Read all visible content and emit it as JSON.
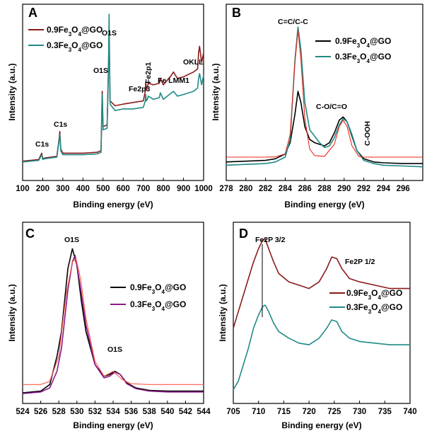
{
  "chart_data": [
    {
      "type": "line",
      "panel_label": "A",
      "xlabel": "Binding energy (eV)",
      "ylabel": "Intensity (a.u.)",
      "xlim": [
        100,
        1000
      ],
      "ylim": [
        0,
        100
      ],
      "xticks": [
        "100",
        "200",
        "300",
        "400",
        "500",
        "600",
        "700",
        "800",
        "900",
        "1000"
      ],
      "legend_position": "top-left",
      "annotations": [
        "C1s",
        "C1s",
        "O1S",
        "O1S",
        "Fe2p3",
        "Fe2p1",
        "Fe LMM1",
        "OKLL"
      ],
      "series": [
        {
          "name": "0.9Fe3O4@GO",
          "name_plain": "0.9Fe",
          "name_sub": "3",
          "name_mid": "O",
          "name_sub2": "4",
          "name_end": "@GO",
          "color": "#8b1a1a",
          "x": [
            100,
            180,
            195,
            200,
            210,
            270,
            282,
            285,
            290,
            300,
            400,
            470,
            490,
            496,
            500,
            520,
            527,
            530,
            535,
            560,
            600,
            650,
            700,
            710,
            712,
            715,
            720,
            725,
            750,
            780,
            785,
            800,
            840,
            850,
            870,
            900,
            950,
            970,
            975,
            980,
            990,
            1000
          ],
          "y": [
            8.5,
            9.5,
            13.5,
            10,
            10.5,
            11.5,
            23,
            27,
            16,
            13.5,
            13.5,
            14,
            15,
            52,
            30,
            31,
            68,
            90,
            46,
            43,
            44,
            45,
            46,
            52,
            58,
            53,
            55,
            57,
            56,
            57,
            60,
            56,
            62,
            64,
            60,
            61,
            64,
            66,
            76,
            80,
            70,
            76
          ]
        },
        {
          "name": "0.3Fe3O4@GO",
          "name_plain": "0.3Fe",
          "name_sub": "3",
          "name_mid": "O",
          "name_sub2": "4",
          "name_end": "@GO",
          "color": "#1f8a85",
          "x": [
            100,
            180,
            195,
            200,
            210,
            270,
            282,
            285,
            290,
            300,
            400,
            470,
            490,
            496,
            500,
            520,
            527,
            530,
            535,
            560,
            600,
            650,
            700,
            710,
            712,
            715,
            720,
            725,
            750,
            780,
            785,
            800,
            840,
            850,
            870,
            900,
            950,
            970,
            975,
            980,
            990,
            1000
          ],
          "y": [
            8,
            9,
            12.5,
            9.5,
            10,
            11,
            22,
            25,
            15,
            12.5,
            12.5,
            13,
            14,
            50,
            28,
            29,
            67,
            100,
            44,
            40,
            41,
            41,
            42,
            46,
            50,
            46,
            47,
            49,
            47,
            48,
            51,
            47,
            51,
            52,
            49,
            50,
            52,
            54,
            60,
            63,
            56,
            62
          ]
        }
      ]
    },
    {
      "type": "line",
      "panel_label": "B",
      "xlabel": "Binding energy (eV)",
      "ylabel": "Intensity (a.u.)",
      "xlim": [
        278,
        298
      ],
      "ylim": [
        0,
        100
      ],
      "xticks": [
        "278",
        "280",
        "282",
        "284",
        "286",
        "288",
        "290",
        "292",
        "294",
        "296"
      ],
      "legend_position": "top-right",
      "annotations": [
        "C=C/C-C",
        "C-O/C=O",
        "C-OOH"
      ],
      "series": [
        {
          "name": "0.9Fe3O4@GO",
          "name_plain": "0.9Fe",
          "name_sub": "3",
          "name_mid": "O",
          "name_sub2": "4",
          "name_end": "@GO",
          "color": "#000000",
          "x": [
            278,
            280,
            282,
            283,
            284,
            284.5,
            285,
            285.3,
            285.6,
            286,
            286.5,
            287,
            287.5,
            288,
            288.5,
            289,
            289.5,
            289.9,
            290.3,
            290.8,
            291.3,
            292,
            293,
            294,
            296,
            298
          ],
          "y": [
            8,
            8.5,
            9,
            10,
            13,
            20,
            38,
            52,
            45,
            30,
            22,
            20,
            19,
            18,
            20,
            26,
            34,
            36,
            33,
            24,
            15,
            10,
            8,
            7.5,
            7,
            7
          ]
        },
        {
          "name": "0.3Fe3O4@GO",
          "name_plain": "0.3Fe",
          "name_sub": "3",
          "name_mid": "O",
          "name_sub2": "4",
          "name_end": "@GO",
          "color": "#1f8a85",
          "x": [
            278,
            280,
            282,
            283,
            284,
            284.5,
            285,
            285.3,
            285.6,
            286,
            286.5,
            287,
            287.5,
            288,
            288.5,
            289,
            289.5,
            289.9,
            290.3,
            290.8,
            291.3,
            292,
            293,
            294,
            296,
            298
          ],
          "y": [
            6,
            6.5,
            7,
            8,
            11,
            22,
            72,
            92,
            78,
            45,
            28,
            24,
            20,
            17,
            18,
            23,
            31,
            35,
            33,
            25,
            15,
            9,
            7,
            6,
            5.5,
            5
          ]
        },
        {
          "name": "",
          "color": "#e8281c",
          "x": [
            278,
            282,
            283,
            284,
            284.5,
            285,
            285.3,
            285.6,
            286,
            286.5,
            287,
            288,
            289,
            289.5,
            289.9,
            290.3,
            290.8,
            291.5,
            292,
            294,
            298
          ],
          "y": [
            11,
            11,
            11.2,
            13,
            25,
            70,
            90,
            72,
            35,
            16,
            12,
            11.5,
            19,
            30,
            34,
            30,
            18,
            11.5,
            11,
            11,
            11
          ]
        }
      ]
    },
    {
      "type": "line",
      "panel_label": "C",
      "xlabel": "Binding energy (eV)",
      "ylabel": "Intensity (a.u.)",
      "xlim": [
        524,
        544
      ],
      "ylim": [
        0,
        100
      ],
      "xticks": [
        "524",
        "526",
        "528",
        "530",
        "532",
        "534",
        "536",
        "538",
        "540",
        "542",
        "544"
      ],
      "legend_position": "middle-right",
      "annotations": [
        "O1S",
        "O1S"
      ],
      "series": [
        {
          "name": "0.9Fe3O4@GO",
          "name_plain": "0.9Fe",
          "name_sub": "3",
          "name_mid": "O",
          "name_sub2": "4",
          "name_end": "@GO",
          "color": "#000000",
          "x": [
            524,
            525,
            526,
            527,
            527.8,
            528.3,
            529,
            529.5,
            530,
            530.5,
            531,
            532,
            533,
            533.6,
            534.2,
            534.8,
            535.5,
            536.5,
            538,
            540,
            542,
            544
          ],
          "y": [
            3,
            3.5,
            4,
            8,
            25,
            40,
            78,
            90,
            80,
            58,
            40,
            20,
            13,
            14,
            16,
            14,
            9,
            6,
            4.5,
            4,
            4,
            4
          ]
        },
        {
          "name": "0.3Fe3O4@GO",
          "name_plain": "0.3Fe",
          "name_sub": "3",
          "name_mid": "O",
          "name_sub2": "4",
          "name_end": "@GO",
          "color": "#8b1a8a",
          "x": [
            524,
            525,
            526,
            527,
            527.8,
            528.3,
            529,
            529.5,
            529.8,
            530.3,
            531,
            532,
            533,
            533.6,
            534.2,
            534.8,
            535.5,
            536.5,
            538,
            540,
            542,
            544
          ],
          "y": [
            2.5,
            3,
            3.5,
            6,
            16,
            30,
            65,
            82,
            86,
            70,
            44,
            20,
            12,
            13,
            15.5,
            14,
            8.5,
            5.5,
            4,
            3.5,
            3.5,
            3.5
          ]
        },
        {
          "name": "",
          "color": "#ff5a4a",
          "x": [
            524,
            526,
            527,
            528,
            528.8,
            529.5,
            529.9,
            530.4,
            531,
            532,
            533,
            534,
            535,
            536,
            538,
            544
          ],
          "y": [
            8,
            8,
            10,
            25,
            62,
            82,
            84,
            72,
            48,
            22,
            13,
            16,
            11,
            8.5,
            8,
            8
          ]
        }
      ]
    },
    {
      "type": "line",
      "panel_label": "D",
      "xlabel": "Binding energy (eV)",
      "ylabel": "Intensity (a.u.)",
      "xlim": [
        705,
        740
      ],
      "ylim": [
        0,
        100
      ],
      "xticks": [
        "705",
        "710",
        "715",
        "720",
        "725",
        "730",
        "735",
        "740"
      ],
      "legend_position": "middle-right",
      "annotations": [
        "Fe2P 3/2",
        "Fe2P 1/2"
      ],
      "series": [
        {
          "name": "0.9Fe3O4@GO",
          "name_plain": "0.9Fe",
          "name_sub": "3",
          "name_mid": "O",
          "name_sub2": "4",
          "name_end": "@GO",
          "color": "#8b1a1a",
          "x": [
            705,
            706,
            707,
            708,
            709,
            710,
            710.8,
            711.3,
            712,
            713,
            714,
            716,
            718,
            720,
            722,
            723.5,
            724.5,
            725.5,
            726.5,
            728,
            730,
            733,
            736,
            740
          ],
          "y": [
            42,
            52,
            62,
            72,
            82,
            90,
            95,
            96,
            90,
            82,
            75,
            70,
            68,
            66,
            70,
            78,
            85,
            84,
            78,
            72,
            70,
            68,
            66,
            66
          ]
        },
        {
          "name": "0.3Fe3O4@GO",
          "name_plain": "0.3Fe",
          "name_sub": "3",
          "name_mid": "O",
          "name_sub2": "4",
          "name_end": "@GO",
          "color": "#1f8a85",
          "x": [
            705,
            706,
            707,
            708,
            709,
            710,
            710.8,
            711.3,
            712,
            713,
            714,
            716,
            718,
            720,
            722,
            723.5,
            724.5,
            725.5,
            726.5,
            728,
            730,
            733,
            736,
            740
          ],
          "y": [
            5,
            10,
            20,
            30,
            42,
            50,
            55,
            56,
            52,
            45,
            40,
            36,
            33,
            32,
            36,
            42,
            47,
            46,
            40,
            36,
            34,
            33,
            32,
            32
          ]
        }
      ]
    }
  ]
}
